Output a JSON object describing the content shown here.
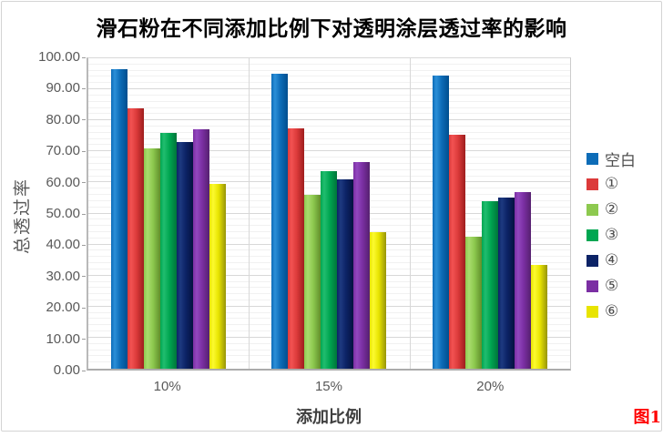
{
  "figure_label": "图1",
  "frame_border_color": "#d4d4d4",
  "figure_label_color": "#ff0000",
  "chart_data": {
    "type": "bar",
    "title": "滑石粉在不同添加比例下对透明涂层透过率的影响",
    "xlabel": "添加比例",
    "ylabel": "总透过率",
    "categories": [
      "10%",
      "15%",
      "20%"
    ],
    "series": [
      {
        "name": "空白",
        "color": "#0d6cb7",
        "light": "#2b8fd8",
        "dark": "#004e8e",
        "values": [
          96.5,
          95.0,
          94.5
        ]
      },
      {
        "name": "①",
        "color": "#dc3a3a",
        "light": "#f25252",
        "dark": "#9e1e1e",
        "values": [
          84.0,
          77.5,
          75.5
        ]
      },
      {
        "name": "②",
        "color": "#8dc94f",
        "light": "#a9dc6e",
        "dark": "#618f2b",
        "values": [
          71.0,
          56.0,
          42.5
        ]
      },
      {
        "name": "③",
        "color": "#00a651",
        "light": "#21bd6f",
        "dark": "#00753a",
        "values": [
          76.0,
          63.5,
          54.0
        ]
      },
      {
        "name": "④",
        "color": "#0c2366",
        "light": "#1e3a80",
        "dark": "#051240",
        "values": [
          73.0,
          61.0,
          55.0
        ]
      },
      {
        "name": "⑤",
        "color": "#7b2fa3",
        "light": "#9247be",
        "dark": "#55206f",
        "values": [
          77.0,
          66.5,
          57.0
        ]
      },
      {
        "name": "⑥",
        "color": "#e8e400",
        "light": "#fcfa30",
        "dark": "#97940a",
        "values": [
          59.5,
          44.0,
          33.5
        ]
      }
    ],
    "ylim": [
      0,
      100
    ],
    "ytick_step": 10,
    "minor_step": 2,
    "yticks": [
      "100.00",
      "90.00",
      "80.00",
      "70.00",
      "60.00",
      "50.00",
      "40.00",
      "30.00",
      "20.00",
      "10.00",
      "0.00"
    ],
    "grid": true,
    "legend_position": "right"
  }
}
